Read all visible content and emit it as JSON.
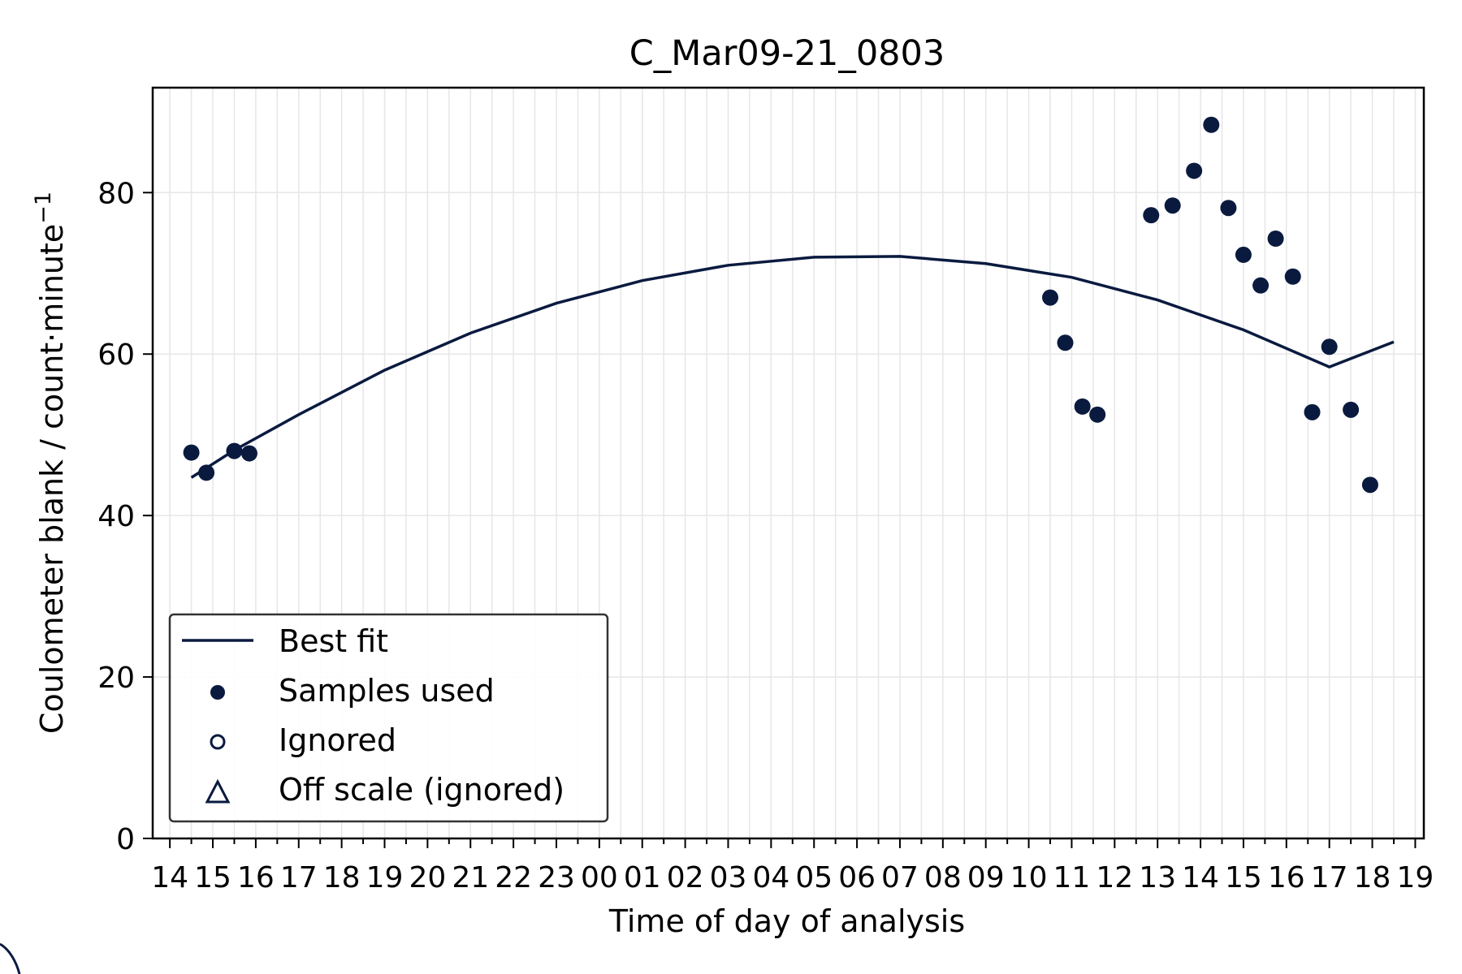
{
  "chart_data": {
    "type": "scatter",
    "title": "C_Mar09-21_0803",
    "xlabel": "Time of day of analysis",
    "ylabel": "Coulometer blank / count·minute",
    "ylabel_superscript": "−1",
    "x_tick_labels": [
      "14",
      "15",
      "16",
      "17",
      "18",
      "19",
      "20",
      "21",
      "22",
      "23",
      "00",
      "01",
      "02",
      "03",
      "04",
      "05",
      "06",
      "07",
      "08",
      "09",
      "10",
      "11",
      "12",
      "13",
      "14",
      "15",
      "16",
      "17",
      "18",
      "19"
    ],
    "x_unit": "hours elapsed since first tick (14:00)",
    "xlim": [
      -0.4,
      29.2
    ],
    "y_ticks": [
      0,
      20,
      40,
      60,
      80
    ],
    "ylim": [
      0,
      93
    ],
    "grid": true,
    "legend_position": "lower-left",
    "colors": {
      "series": "#0a1a3f",
      "grid": "#e6e6e6",
      "axes": "#000000"
    },
    "series": [
      {
        "name": "Best fit",
        "kind": "line",
        "x": [
          0.5,
          1.5,
          3,
          5,
          7,
          9,
          11,
          13,
          15,
          17,
          19,
          21,
          23,
          25,
          27,
          28.5
        ],
        "y": [
          44.7,
          48.1,
          52.5,
          58.0,
          62.6,
          66.3,
          69.1,
          71.0,
          72.0,
          72.1,
          71.2,
          69.5,
          66.7,
          63.0,
          58.4,
          61.5
        ]
      },
      {
        "name": "Samples used",
        "kind": "filled-circle",
        "x": [
          0.5,
          0.85,
          1.5,
          1.85,
          20.5,
          20.85,
          21.25,
          21.6,
          22.85,
          23.35,
          23.85,
          24.25,
          24.65,
          25.0,
          25.4,
          25.75,
          26.15,
          26.6,
          27.0,
          27.5,
          27.95
        ],
        "y": [
          47.8,
          45.3,
          48.0,
          47.7,
          67.0,
          61.4,
          53.5,
          52.5,
          77.2,
          78.4,
          82.7,
          88.4,
          78.1,
          72.3,
          68.5,
          74.3,
          69.6,
          52.8,
          60.9,
          53.1,
          43.8
        ]
      },
      {
        "name": "Ignored",
        "kind": "open-circle",
        "x": [],
        "y": []
      },
      {
        "name": "Off scale (ignored)",
        "kind": "open-triangle",
        "x": [],
        "y": []
      }
    ]
  }
}
